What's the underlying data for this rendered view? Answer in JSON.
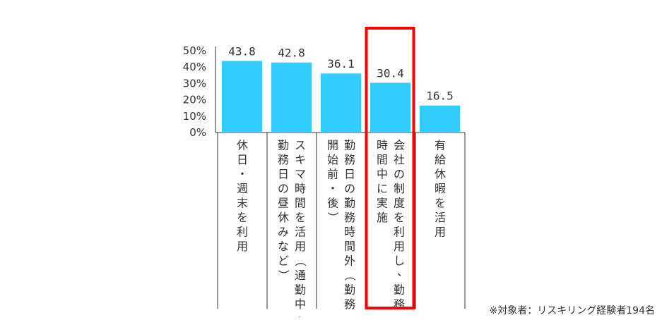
{
  "chart_data": {
    "type": "bar",
    "categories": [
      "休日・週末を利用",
      "スキマ時間を活用（通勤中、勤務日の昼休みなど）",
      "勤務日の勤務時間外（勤務開始前・後）",
      "会社の制度を利用し、勤務時間中に実施",
      "有給休暇を活用"
    ],
    "category_columns": [
      [
        "休日・週末を利用"
      ],
      [
        "スキマ時間を活用（通勤中、",
        "勤務日の昼休みなど）"
      ],
      [
        "勤務日の勤務時間外（勤務",
        "開始前・後）"
      ],
      [
        "会社の制度を利用し、勤務",
        "時間中に実施"
      ],
      [
        "有給休暇を活用"
      ]
    ],
    "values": [
      43.8,
      42.8,
      36.1,
      30.4,
      16.5
    ],
    "value_labels": [
      "43.8",
      "42.8",
      "36.1",
      "30.4",
      "16.5"
    ],
    "ylim": [
      0,
      50
    ],
    "yticks": [
      "0%",
      "10%",
      "20%",
      "30%",
      "40%",
      "50%"
    ],
    "highlight_index": 3,
    "bar_color": "#33ccff",
    "highlight_color": "#ff0000",
    "grid": false
  },
  "footnote": "※対象者：リスキリング経験者194名"
}
